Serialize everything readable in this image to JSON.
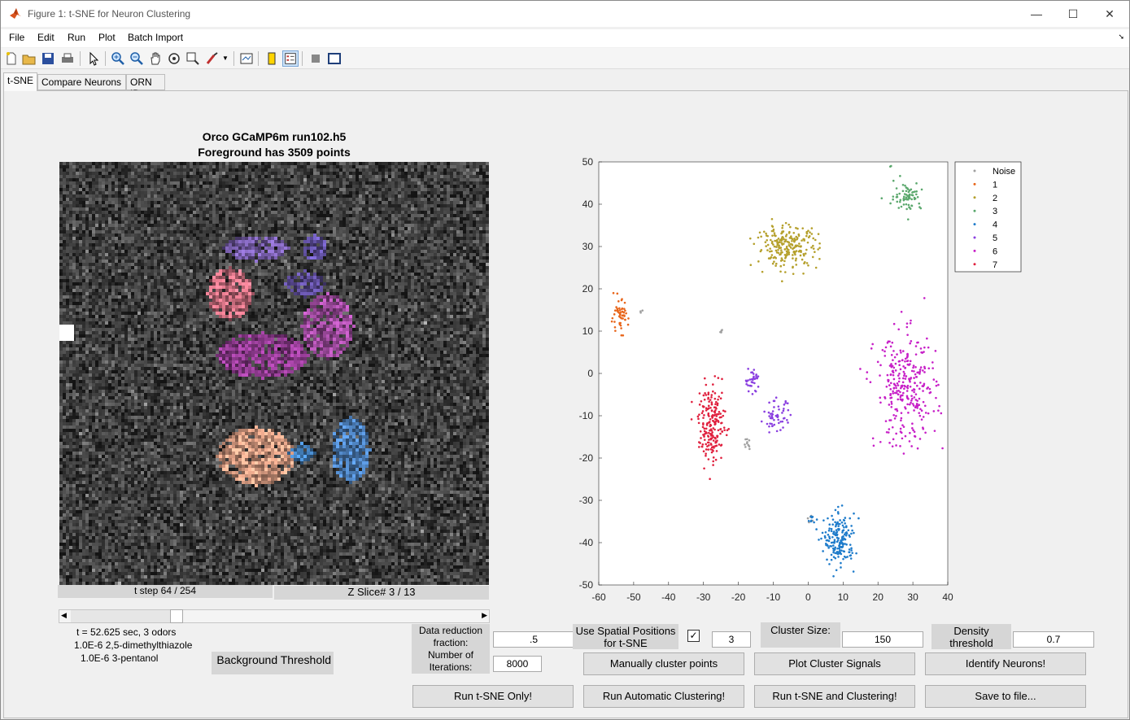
{
  "window": {
    "title": "Figure 1: t-SNE for Neuron Clustering",
    "minimize": "—",
    "maximize": "☐",
    "close": "✕"
  },
  "menu": [
    "File",
    "Edit",
    "Run",
    "Plot",
    "Batch Import"
  ],
  "tabs": [
    "t-SNE",
    "Compare Neurons",
    "ORN ID"
  ],
  "image_panel": {
    "title_line1": "Orco GCaMP6m run102.h5",
    "title_line2": "Foreground has 3509 points",
    "tstep": "t step 64 / 254",
    "zslice": "Z Slice# 3 / 13",
    "info_line1": "t = 52.625 sec, 3 odors",
    "info_line2": "1.0E-6 2,5-dimethylthiazole",
    "info_line3": "1.0E-6 3-pentanol",
    "background_threshold": "Background Threshold"
  },
  "controls": {
    "data_reduction_label": "Data reduction fraction:",
    "data_reduction_value": ".5",
    "iterations_label": "Number of Iterations:",
    "iterations_value": "8000",
    "spatial_label": "Use Spatial Positions for t-SNE",
    "spatial_checked": true,
    "spatial_value": "3",
    "cluster_size_label": "Cluster Size:",
    "cluster_size_value": "150",
    "density_label": "Density threshold",
    "density_value": "0.7",
    "buttons": {
      "manual": "Manually cluster points",
      "plot_signals": "Plot Cluster Signals",
      "identify": "Identify Neurons!",
      "run_tsne": "Run t-SNE Only!",
      "run_auto": "Run Automatic Clustering!",
      "run_both": "Run t-SNE and Clustering!",
      "save": "Save to file..."
    }
  },
  "chart_data": {
    "type": "scatter",
    "xlim": [
      -60,
      40
    ],
    "ylim": [
      -50,
      50
    ],
    "xticks": [
      -60,
      -50,
      -40,
      -30,
      -20,
      -10,
      0,
      10,
      20,
      30,
      40
    ],
    "yticks": [
      -50,
      -40,
      -30,
      -20,
      -10,
      0,
      10,
      20,
      30,
      40,
      50
    ],
    "legend": "top-right outside",
    "series": [
      {
        "name": "Noise",
        "color": "#a0a0a0",
        "clusters": [
          [
            -25,
            10,
            0.5,
            0.5,
            4
          ],
          [
            -48,
            14.5,
            0.4,
            0.5,
            3
          ],
          [
            -17.5,
            -16.5,
            1,
            1.5,
            10
          ],
          [
            0.5,
            -34.5,
            1,
            0.7,
            6
          ]
        ]
      },
      {
        "name": "1",
        "color": "#e8651a",
        "clusters": [
          [
            -54,
            13.5,
            2.2,
            3.5,
            55
          ]
        ]
      },
      {
        "name": "2",
        "color": "#b5a02c",
        "clusters": [
          [
            -6,
            30,
            8,
            4.5,
            230
          ]
        ]
      },
      {
        "name": "3",
        "color": "#5ba86d",
        "clusters": [
          [
            28.5,
            42,
            3.5,
            3,
            70
          ],
          [
            23.5,
            49,
            0.3,
            0.3,
            2
          ],
          [
            21,
            41.5,
            0.3,
            0.3,
            1
          ]
        ]
      },
      {
        "name": "4",
        "color": "#1f7ccb",
        "clusters": [
          [
            9,
            -39.5,
            4,
            5.5,
            180
          ],
          [
            1,
            -34.5,
            1,
            0.8,
            8
          ]
        ]
      },
      {
        "name": "5",
        "color": "#8a3fe0",
        "clusters": [
          [
            -16,
            -1.5,
            2,
            2.5,
            35
          ],
          [
            -9,
            -10.5,
            3.5,
            3.5,
            55
          ]
        ]
      },
      {
        "name": "6",
        "color": "#c71fc7",
        "clusters": [
          [
            28,
            -4,
            8,
            12,
            300
          ]
        ]
      },
      {
        "name": "7",
        "color": "#e0203e",
        "clusters": [
          [
            -27.5,
            -12,
            3.5,
            8,
            200
          ]
        ]
      }
    ]
  }
}
